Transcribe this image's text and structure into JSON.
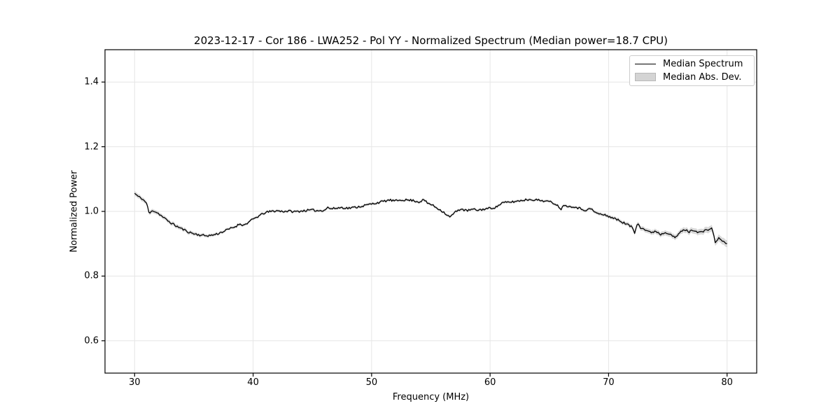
{
  "title": "2023-12-17 - Cor 186 - LWA252 - Pol YY - Normalized Spectrum (Median power=18.7 CPU)",
  "legend": {
    "entries": [
      {
        "label": "Median Spectrum",
        "type": "line",
        "color": "#000000"
      },
      {
        "label": "Median Abs. Dev.",
        "type": "patch",
        "color": "#d4d4d4"
      }
    ],
    "position": "upper right"
  },
  "colors": {
    "line": "#000000",
    "band": "#b3b3b3",
    "band_opacity": 0.5,
    "grid": "#e6e6e6",
    "frame": "#000000",
    "background": "#ffffff"
  },
  "chart_data": {
    "type": "line",
    "title": "2023-12-17 - Cor 186 - LWA252 - Pol YY - Normalized Spectrum (Median power=18.7 CPU)",
    "xlabel": "Frequency (MHz)",
    "ylabel": "Normalized Power",
    "xlim": [
      27.5,
      82.5
    ],
    "ylim": [
      0.5,
      1.5
    ],
    "x_ticks": [
      30,
      40,
      50,
      60,
      70,
      80
    ],
    "y_ticks": [
      0.6,
      0.8,
      1.0,
      1.2,
      1.4
    ],
    "grid": true,
    "legend_position": "upper right",
    "series": [
      {
        "name": "Median Spectrum",
        "x": [
          30.0,
          30.3,
          30.6,
          31.0,
          31.25,
          31.5,
          32.0,
          32.5,
          33.0,
          33.5,
          34.0,
          34.5,
          35.0,
          35.5,
          36.0,
          36.5,
          37.0,
          37.5,
          38.0,
          38.5,
          38.9,
          39.2,
          39.6,
          40.0,
          40.5,
          41.0,
          41.5,
          42.0,
          42.5,
          43.0,
          43.5,
          44.0,
          44.5,
          45.0,
          45.5,
          46.0,
          46.3,
          46.6,
          47.0,
          47.5,
          48.0,
          48.5,
          49.0,
          49.5,
          50.0,
          50.5,
          51.0,
          51.5,
          52.0,
          52.5,
          53.0,
          53.5,
          54.0,
          54.4,
          54.7,
          55.0,
          55.5,
          56.0,
          56.6,
          57.0,
          57.5,
          58.0,
          58.5,
          59.0,
          59.5,
          60.0,
          60.5,
          61.0,
          61.5,
          62.0,
          62.5,
          63.0,
          63.5,
          64.0,
          64.5,
          65.0,
          65.5,
          66.0,
          66.3,
          66.7,
          67.0,
          67.5,
          68.0,
          68.5,
          69.0,
          69.5,
          70.0,
          70.5,
          71.0,
          71.5,
          72.0,
          72.2,
          72.45,
          72.7,
          73.0,
          73.5,
          74.0,
          74.4,
          74.8,
          75.2,
          75.6,
          76.0,
          76.4,
          76.8,
          77.2,
          77.6,
          78.0,
          78.3,
          78.7,
          79.0,
          79.3,
          79.6,
          80.0
        ],
        "y": [
          1.056,
          1.046,
          1.04,
          1.026,
          0.991,
          1.004,
          0.994,
          0.979,
          0.966,
          0.955,
          0.946,
          0.937,
          0.931,
          0.927,
          0.925,
          0.926,
          0.931,
          0.938,
          0.946,
          0.953,
          0.962,
          0.957,
          0.966,
          0.976,
          0.986,
          0.996,
          1.0,
          1.002,
          1.0,
          1.001,
          0.999,
          1.001,
          1.003,
          1.004,
          1.002,
          1.004,
          1.012,
          1.008,
          1.01,
          1.012,
          1.01,
          1.012,
          1.015,
          1.019,
          1.023,
          1.027,
          1.031,
          1.035,
          1.032,
          1.036,
          1.035,
          1.034,
          1.029,
          1.036,
          1.026,
          1.022,
          1.011,
          1.0,
          0.982,
          0.996,
          1.008,
          1.002,
          1.006,
          1.004,
          1.007,
          1.01,
          1.013,
          1.026,
          1.028,
          1.03,
          1.033,
          1.036,
          1.037,
          1.035,
          1.033,
          1.03,
          1.024,
          1.008,
          1.021,
          1.014,
          1.016,
          1.01,
          1.004,
          1.008,
          0.994,
          0.99,
          0.985,
          0.978,
          0.97,
          0.961,
          0.951,
          0.933,
          0.968,
          0.95,
          0.945,
          0.935,
          0.939,
          0.929,
          0.936,
          0.931,
          0.917,
          0.934,
          0.944,
          0.937,
          0.943,
          0.935,
          0.938,
          0.942,
          0.949,
          0.906,
          0.916,
          0.91,
          0.898
        ]
      },
      {
        "name": "Median Abs. Dev.",
        "mad_x": [
          30,
          32,
          34,
          38,
          45,
          55,
          65,
          70,
          73,
          76,
          78,
          80
        ],
        "mad": [
          0.007,
          0.006,
          0.006,
          0.004,
          0.004,
          0.004,
          0.004,
          0.005,
          0.007,
          0.008,
          0.009,
          0.011
        ]
      }
    ],
    "noise_amplitude": 0.0033,
    "noise_seed": 11,
    "samples_per_mhz": 10
  }
}
